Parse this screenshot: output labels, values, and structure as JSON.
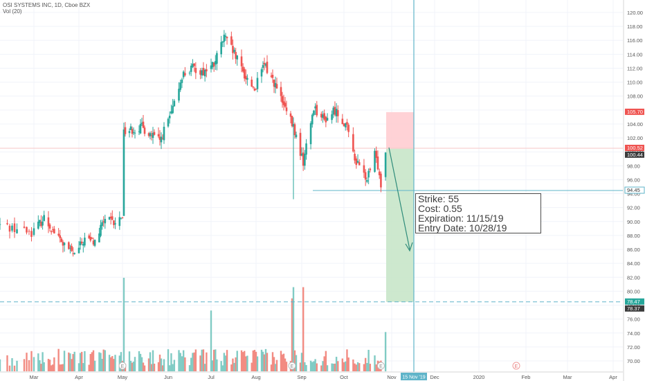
{
  "header": {
    "symbol_line": "OSI SYSTEMS INC, 1D, Cboe BZX",
    "vol_line": "Vol (20)"
  },
  "note": {
    "strike": "Strike: 55",
    "cost": "Cost: 0.55",
    "expiration": "Expiration: 11/15/19",
    "entry_date": "Entry Date: 10/28/19"
  },
  "colors": {
    "up": "#26a69a",
    "down": "#ef5350",
    "vol_up": "#80cbc4",
    "vol_down": "#f28b82",
    "cursor": "#5fb4c9",
    "stop_zone": "#ffcdd2",
    "target_zone": "#c8e6c9"
  },
  "chart_data": {
    "type": "candlestick",
    "y_axis": {
      "ticks": [
        "120.00",
        "118.00",
        "116.00",
        "114.00",
        "112.00",
        "110.00",
        "108.00",
        "106.00",
        "104.00",
        "102.00",
        "100.00",
        "98.00",
        "96.00",
        "94.00",
        "92.00",
        "90.00",
        "88.00",
        "86.00",
        "84.00",
        "82.00",
        "80.00",
        "78.00",
        "76.00",
        "74.00",
        "72.00",
        "70.00"
      ],
      "ylim": [
        69,
        121
      ]
    },
    "x_axis": {
      "ticks": [
        "Mar",
        "Apr",
        "May",
        "Jun",
        "Jul",
        "Aug",
        "Sep",
        "Oct",
        "Nov",
        "Dec",
        "2020",
        "Feb",
        "Mar",
        "Apr"
      ],
      "cursor_label": "15 Nov '19"
    },
    "price_labels": [
      {
        "text": "105.70",
        "value": 105.7,
        "style": "red"
      },
      {
        "text": "100.52",
        "value": 100.52,
        "style": "red"
      },
      {
        "text": "100.44",
        "value": 100.44,
        "style": "dark"
      },
      {
        "text": "94.45",
        "value": 94.45,
        "style": "line"
      },
      {
        "text": "78.47",
        "value": 78.47,
        "style": "green"
      },
      {
        "text": "78.37",
        "value": 78.37,
        "style": "dark"
      }
    ],
    "horizontal_lines": [
      {
        "value": 94.45,
        "style": "solid"
      },
      {
        "value": 78.47,
        "style": "dashed"
      },
      {
        "value": 100.52,
        "style": "faint"
      }
    ],
    "earnings_markers": [
      "E",
      "E",
      "E",
      "E"
    ],
    "position": {
      "entry": 100.44,
      "stop": 105.7,
      "target": 78.47
    },
    "price_path": [
      {
        "d": "2019-02-15",
        "p": 89.5
      },
      {
        "d": "2019-02-28",
        "p": 88.5
      },
      {
        "d": "2019-03-08",
        "p": 90.5
      },
      {
        "d": "2019-03-15",
        "p": 88.5
      },
      {
        "d": "2019-03-22",
        "p": 86.5
      },
      {
        "d": "2019-03-29",
        "p": 85.2
      },
      {
        "d": "2019-04-05",
        "p": 87.5
      },
      {
        "d": "2019-04-12",
        "p": 87.0
      },
      {
        "d": "2019-04-19",
        "p": 90.5
      },
      {
        "d": "2019-04-26",
        "p": 89.5
      },
      {
        "d": "2019-05-01",
        "p": 91.0
      },
      {
        "d": "2019-05-02",
        "p": 103.0
      },
      {
        "d": "2019-05-15",
        "p": 103.5
      },
      {
        "d": "2019-05-28",
        "p": 101.5
      },
      {
        "d": "2019-06-06",
        "p": 106.0
      },
      {
        "d": "2019-06-12",
        "p": 111.0
      },
      {
        "d": "2019-06-19",
        "p": 112.0
      },
      {
        "d": "2019-06-26",
        "p": 111.5
      },
      {
        "d": "2019-07-03",
        "p": 112.5
      },
      {
        "d": "2019-07-10",
        "p": 116.5
      },
      {
        "d": "2019-07-17",
        "p": 114.0
      },
      {
        "d": "2019-07-24",
        "p": 111.0
      },
      {
        "d": "2019-07-31",
        "p": 109.0
      },
      {
        "d": "2019-08-07",
        "p": 112.5
      },
      {
        "d": "2019-08-14",
        "p": 110.0
      },
      {
        "d": "2019-08-21",
        "p": 106.5
      },
      {
        "d": "2019-08-28",
        "p": 103.5
      },
      {
        "d": "2019-09-04",
        "p": 98.5
      },
      {
        "d": "2019-09-11",
        "p": 106.5
      },
      {
        "d": "2019-09-18",
        "p": 104.5
      },
      {
        "d": "2019-09-25",
        "p": 106.0
      },
      {
        "d": "2019-10-02",
        "p": 104.0
      },
      {
        "d": "2019-10-09",
        "p": 98.5
      },
      {
        "d": "2019-10-16",
        "p": 96.0
      },
      {
        "d": "2019-10-21",
        "p": 99.5
      },
      {
        "d": "2019-10-25",
        "p": 96.5
      },
      {
        "d": "2019-10-28",
        "p": 100.52
      }
    ],
    "volume_spikes": [
      {
        "d": "2019-05-02",
        "v": 1.0
      },
      {
        "d": "2019-07-01",
        "v": 0.65
      },
      {
        "d": "2019-08-27",
        "v": 0.78
      },
      {
        "d": "2019-08-28",
        "v": 0.9
      },
      {
        "d": "2019-09-04",
        "v": 0.9
      },
      {
        "d": "2019-10-28",
        "v": 0.42
      }
    ]
  }
}
